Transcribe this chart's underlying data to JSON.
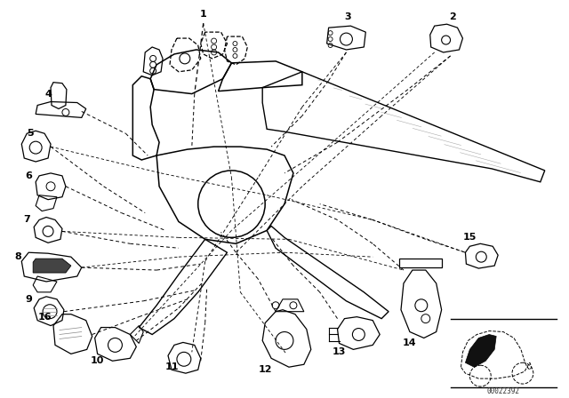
{
  "bg_color": "#ffffff",
  "line_color": "#000000",
  "part_number": "00022392",
  "figsize": [
    6.4,
    4.48
  ],
  "dpi": 100
}
